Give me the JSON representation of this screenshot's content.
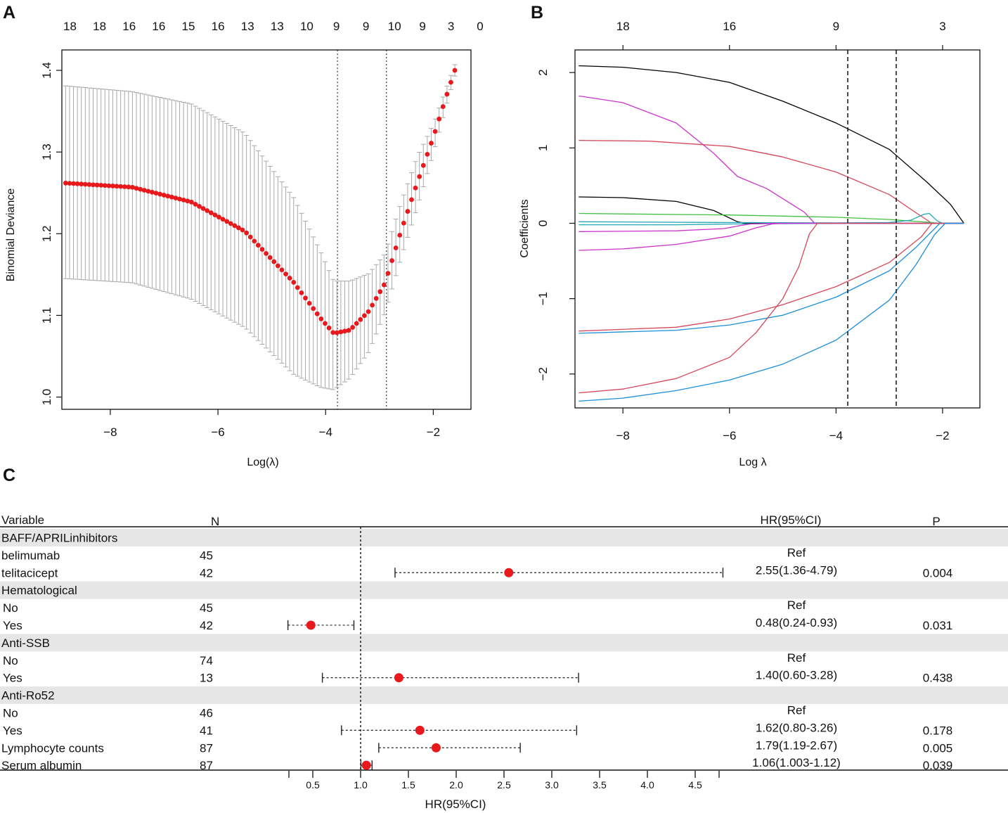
{
  "panels": {
    "a": "A",
    "b": "B",
    "c": "C"
  },
  "colors": {
    "point": "#e8191c",
    "errbar": "#a9a9a9",
    "band": "#e6e6e6",
    "axis": "#111111"
  },
  "chart_data": [
    {
      "id": "A",
      "type": "scatter",
      "subtype": "cv-error-bars",
      "xlabel": "Log(λ)",
      "ylabel": "Binomial Deviance",
      "xlim": [
        -8.9,
        -1.3
      ],
      "ylim": [
        0.985,
        1.425
      ],
      "x_ticks": [
        -8,
        -6,
        -4,
        -2
      ],
      "x_tick_labels": [
        "−8",
        "−6",
        "−4",
        "−2"
      ],
      "y_ticks": [
        1.0,
        1.1,
        1.2,
        1.3,
        1.4
      ],
      "y_tick_labels": [
        "1.0",
        "1.1",
        "1.2",
        "1.3",
        "1.4"
      ],
      "top_axis_x": [
        -8.75,
        -8.2,
        -7.65,
        -7.1,
        -6.55,
        -6.0,
        -5.45,
        -4.9,
        -4.35,
        -3.8,
        -3.25,
        -2.72,
        -2.2,
        -1.67,
        -1.13
      ],
      "top_axis_labels": [
        "18",
        "18",
        "16",
        "16",
        "15",
        "16",
        "13",
        "13",
        "10",
        "9",
        "9",
        "10",
        "9",
        "3",
        "0"
      ],
      "vlines": [
        -3.78,
        -2.87
      ],
      "lambda_min": -3.78,
      "lambda_1se": -2.87,
      "anchors": {
        "x": [
          -8.83,
          -7.6,
          -6.5,
          -5.5,
          -4.6,
          -4.1,
          -3.85,
          -3.55,
          -3.2,
          -2.9,
          -2.6,
          -2.3,
          -2.0,
          -1.75,
          -1.6
        ],
        "y": [
          1.262,
          1.257,
          1.239,
          1.203,
          1.141,
          1.097,
          1.078,
          1.082,
          1.105,
          1.139,
          1.203,
          1.262,
          1.318,
          1.37,
          1.4
        ],
        "lower": [
          1.145,
          1.14,
          1.12,
          1.085,
          1.028,
          1.012,
          1.009,
          1.023,
          1.055,
          1.103,
          1.17,
          1.232,
          1.298,
          1.359,
          1.393
        ],
        "upper": [
          1.381,
          1.374,
          1.359,
          1.323,
          1.245,
          1.179,
          1.142,
          1.142,
          1.151,
          1.175,
          1.238,
          1.294,
          1.334,
          1.38,
          1.407
        ]
      },
      "n_points": 100
    },
    {
      "id": "B",
      "type": "line",
      "xlabel": "Log λ",
      "ylabel": "Coefficients",
      "xlim": [
        -8.9,
        -1.3
      ],
      "ylim": [
        -2.45,
        2.3
      ],
      "x_ticks": [
        -8,
        -6,
        -4,
        -2
      ],
      "x_tick_labels": [
        "−8",
        "−6",
        "−4",
        "−2"
      ],
      "y_ticks": [
        -2,
        -1,
        0,
        1,
        2
      ],
      "y_tick_labels": [
        "−2",
        "−1",
        "0",
        "1",
        "2"
      ],
      "top_axis_x": [
        -8,
        -6,
        -4,
        -2
      ],
      "top_axis_labels": [
        "18",
        "16",
        "9",
        "3"
      ],
      "vlines": [
        -3.78,
        -2.87
      ],
      "series": [
        {
          "color": "#000000",
          "points": [
            [
              -8.83,
              2.09
            ],
            [
              -8,
              2.07
            ],
            [
              -7,
              2.0
            ],
            [
              -6,
              1.87
            ],
            [
              -5,
              1.62
            ],
            [
              -4,
              1.33
            ],
            [
              -3,
              0.98
            ],
            [
              -2.3,
              0.55
            ],
            [
              -1.85,
              0.25
            ],
            [
              -1.6,
              0
            ]
          ]
        },
        {
          "color": "#cc33cc",
          "points": [
            [
              -8.83,
              1.69
            ],
            [
              -8,
              1.6
            ],
            [
              -7,
              1.33
            ],
            [
              -6.3,
              0.93
            ],
            [
              -5.85,
              0.62
            ],
            [
              -5.3,
              0.46
            ],
            [
              -4.6,
              0.15
            ],
            [
              -4.4,
              0
            ],
            [
              -1.6,
              0
            ]
          ]
        },
        {
          "color": "#d4475a",
          "points": [
            [
              -8.83,
              1.1
            ],
            [
              -7.5,
              1.09
            ],
            [
              -6,
              1.02
            ],
            [
              -5,
              0.88
            ],
            [
              -4,
              0.68
            ],
            [
              -3,
              0.38
            ],
            [
              -2.5,
              0.14
            ],
            [
              -2.2,
              0
            ],
            [
              -1.6,
              0
            ]
          ]
        },
        {
          "color": "#000000",
          "points": [
            [
              -8.83,
              0.35
            ],
            [
              -8,
              0.34
            ],
            [
              -7,
              0.29
            ],
            [
              -6.3,
              0.17
            ],
            [
              -5.85,
              0.02
            ],
            [
              -5.7,
              0
            ],
            [
              -1.6,
              0
            ]
          ]
        },
        {
          "color": "#44c044",
          "points": [
            [
              -8.83,
              0.13
            ],
            [
              -6,
              0.11
            ],
            [
              -4,
              0.08
            ],
            [
              -3,
              0.05
            ],
            [
              -2.2,
              0.01
            ],
            [
              -2.05,
              0
            ],
            [
              -1.6,
              0
            ]
          ]
        },
        {
          "color": "#22a7b4",
          "points": [
            [
              -8.83,
              0.02
            ],
            [
              -6,
              0.01
            ],
            [
              -4,
              0.005
            ],
            [
              -3,
              0.01
            ],
            [
              -2.6,
              0.04
            ],
            [
              -2.35,
              0.12
            ],
            [
              -2.25,
              0.13
            ],
            [
              -2.1,
              0.03
            ],
            [
              -2.0,
              0
            ],
            [
              -1.6,
              0
            ]
          ]
        },
        {
          "color": "#22a7b4",
          "points": [
            [
              -8.83,
              -0.02
            ],
            [
              -7,
              -0.02
            ],
            [
              -6,
              -0.01
            ],
            [
              -5,
              -0.005
            ],
            [
              -4,
              0
            ],
            [
              -1.6,
              0
            ]
          ]
        },
        {
          "color": "#cc33cc",
          "points": [
            [
              -8.83,
              -0.11
            ],
            [
              -7,
              -0.1
            ],
            [
              -6.1,
              -0.07
            ],
            [
              -5.8,
              -0.03
            ],
            [
              -5.6,
              -0.01
            ],
            [
              -5.2,
              0
            ],
            [
              -1.6,
              0
            ]
          ]
        },
        {
          "color": "#cc33cc",
          "points": [
            [
              -8.83,
              -0.36
            ],
            [
              -8,
              -0.34
            ],
            [
              -7,
              -0.28
            ],
            [
              -6,
              -0.17
            ],
            [
              -5.5,
              -0.06
            ],
            [
              -5.2,
              -0.01
            ],
            [
              -5.0,
              0
            ],
            [
              -1.6,
              0
            ]
          ]
        },
        {
          "color": "#d4475a",
          "points": [
            [
              -8.83,
              -1.43
            ],
            [
              -7,
              -1.38
            ],
            [
              -6,
              -1.27
            ],
            [
              -5,
              -1.08
            ],
            [
              -4,
              -0.84
            ],
            [
              -3,
              -0.52
            ],
            [
              -2.4,
              -0.18
            ],
            [
              -2.2,
              0
            ],
            [
              -1.6,
              0
            ]
          ]
        },
        {
          "color": "#1b8fdb",
          "points": [
            [
              -8.83,
              -1.46
            ],
            [
              -7,
              -1.42
            ],
            [
              -6,
              -1.35
            ],
            [
              -5,
              -1.22
            ],
            [
              -4,
              -0.98
            ],
            [
              -3,
              -0.63
            ],
            [
              -2.5,
              -0.32
            ],
            [
              -2.05,
              0
            ],
            [
              -1.6,
              0
            ]
          ]
        },
        {
          "color": "#d4475a",
          "points": [
            [
              -8.83,
              -2.25
            ],
            [
              -8,
              -2.2
            ],
            [
              -7,
              -2.06
            ],
            [
              -6,
              -1.78
            ],
            [
              -5.5,
              -1.45
            ],
            [
              -5.0,
              -1.0
            ],
            [
              -4.7,
              -0.58
            ],
            [
              -4.5,
              -0.14
            ],
            [
              -4.35,
              0
            ],
            [
              -1.6,
              0
            ]
          ]
        },
        {
          "color": "#1b8fdb",
          "points": [
            [
              -8.83,
              -2.36
            ],
            [
              -8,
              -2.32
            ],
            [
              -7,
              -2.22
            ],
            [
              -6,
              -2.08
            ],
            [
              -5,
              -1.87
            ],
            [
              -4,
              -1.55
            ],
            [
              -3,
              -1.02
            ],
            [
              -2.5,
              -0.55
            ],
            [
              -2.15,
              -0.15
            ],
            [
              -1.95,
              0
            ],
            [
              -1.6,
              0
            ]
          ]
        }
      ]
    },
    {
      "id": "C",
      "type": "forest",
      "xlabel": "HR(95%CI)",
      "xlim": [
        0.25,
        4.75
      ],
      "ref_line": 1.0,
      "x_ticks": [
        0.25,
        0.5,
        1.0,
        1.5,
        2.0,
        2.5,
        3.0,
        3.5,
        4.0,
        4.5,
        4.75
      ],
      "x_tick_labels": [
        "",
        "0.5",
        "1.0",
        "1.5",
        "2.0",
        "2.5",
        "3.0",
        "3.5",
        "4.0",
        "4.5",
        ""
      ],
      "headers": {
        "variable": "Variable",
        "n": "N",
        "hr": "HR(95%CI)",
        "p": "P"
      },
      "rows": [
        {
          "type": "group",
          "label": "BAFF/APRILinhibitors",
          "n": "",
          "hr": "",
          "p": ""
        },
        {
          "type": "item",
          "label": "belimumab",
          "n": "45",
          "hr": "Ref",
          "p": ""
        },
        {
          "type": "item",
          "label": "telitacicept",
          "n": "42",
          "hr": "2.55(1.36-4.79)",
          "p": "0.004",
          "est": 2.55,
          "lo": 1.36,
          "hi": 4.79
        },
        {
          "type": "group",
          "label": "Hematological",
          "n": "",
          "hr": "",
          "p": ""
        },
        {
          "type": "item",
          "label": "No",
          "n": "45",
          "hr": "Ref",
          "p": ""
        },
        {
          "type": "item",
          "label": "Yes",
          "n": "42",
          "hr": "0.48(0.24-0.93)",
          "p": "0.031",
          "est": 0.48,
          "lo": 0.24,
          "hi": 0.93
        },
        {
          "type": "group",
          "label": "Anti-SSB",
          "n": "",
          "hr": "",
          "p": ""
        },
        {
          "type": "item",
          "label": "No",
          "n": "74",
          "hr": "Ref",
          "p": ""
        },
        {
          "type": "item",
          "label": "Yes",
          "n": "13",
          "hr": "1.40(0.60-3.28)",
          "p": "0.438",
          "est": 1.4,
          "lo": 0.6,
          "hi": 3.28
        },
        {
          "type": "group",
          "label": "Anti-Ro52",
          "n": "",
          "hr": "",
          "p": ""
        },
        {
          "type": "item",
          "label": "No",
          "n": "46",
          "hr": "Ref",
          "p": ""
        },
        {
          "type": "item",
          "label": "Yes",
          "n": "41",
          "hr": "1.62(0.80-3.26)",
          "p": "0.178",
          "est": 1.62,
          "lo": 0.8,
          "hi": 3.26
        },
        {
          "type": "item",
          "label": "Lymphocyte counts",
          "n": "87",
          "hr": "1.79(1.19-2.67)",
          "p": "0.005",
          "est": 1.79,
          "lo": 1.19,
          "hi": 2.67
        },
        {
          "type": "item",
          "label": "Serum albumin",
          "n": "87",
          "hr": "1.06(1.003-1.12)",
          "p": "0.039",
          "est": 1.06,
          "lo": 1.003,
          "hi": 1.12
        }
      ]
    }
  ]
}
